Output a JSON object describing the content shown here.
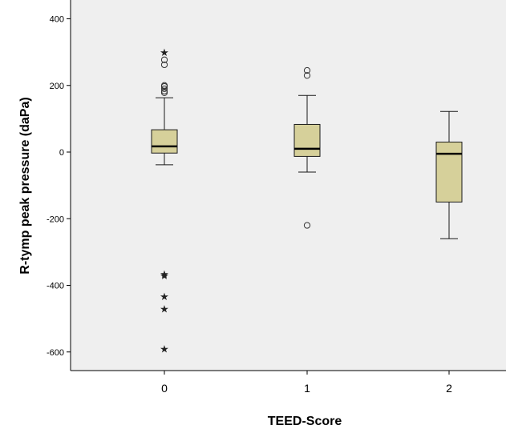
{
  "chart_data": {
    "type": "boxplot",
    "xlabel": "TEED-Score",
    "ylabel": "R-tymp peak pressure (daPa)",
    "ylim": [
      -660,
      440
    ],
    "yticks": [
      400,
      200,
      0,
      -200,
      -400,
      -600
    ],
    "categories": [
      "0",
      "1",
      "2"
    ],
    "grid": false,
    "colors": {
      "plot_background": "#efefef",
      "box_fill": "#d6d09a",
      "box_stroke": "#1a1a1a",
      "median": "#000000",
      "axis": "#000000"
    },
    "boxes": [
      {
        "category": "0",
        "q1": -3,
        "median": 17,
        "q3": 67,
        "whisker_low": -38,
        "whisker_high": 163,
        "outliers": [
          178,
          183,
          190,
          197,
          200,
          262,
          277
        ],
        "extremes": [
          300,
          -365,
          -370,
          -432,
          -470,
          -590
        ]
      },
      {
        "category": "1",
        "q1": -13,
        "median": 10,
        "q3": 83,
        "whisker_low": -60,
        "whisker_high": 170,
        "outliers": [
          230,
          245,
          -220
        ],
        "extremes": []
      },
      {
        "category": "2",
        "q1": -150,
        "median": -5,
        "q3": 30,
        "whisker_low": -260,
        "whisker_high": 122,
        "outliers": [],
        "extremes": []
      }
    ]
  }
}
